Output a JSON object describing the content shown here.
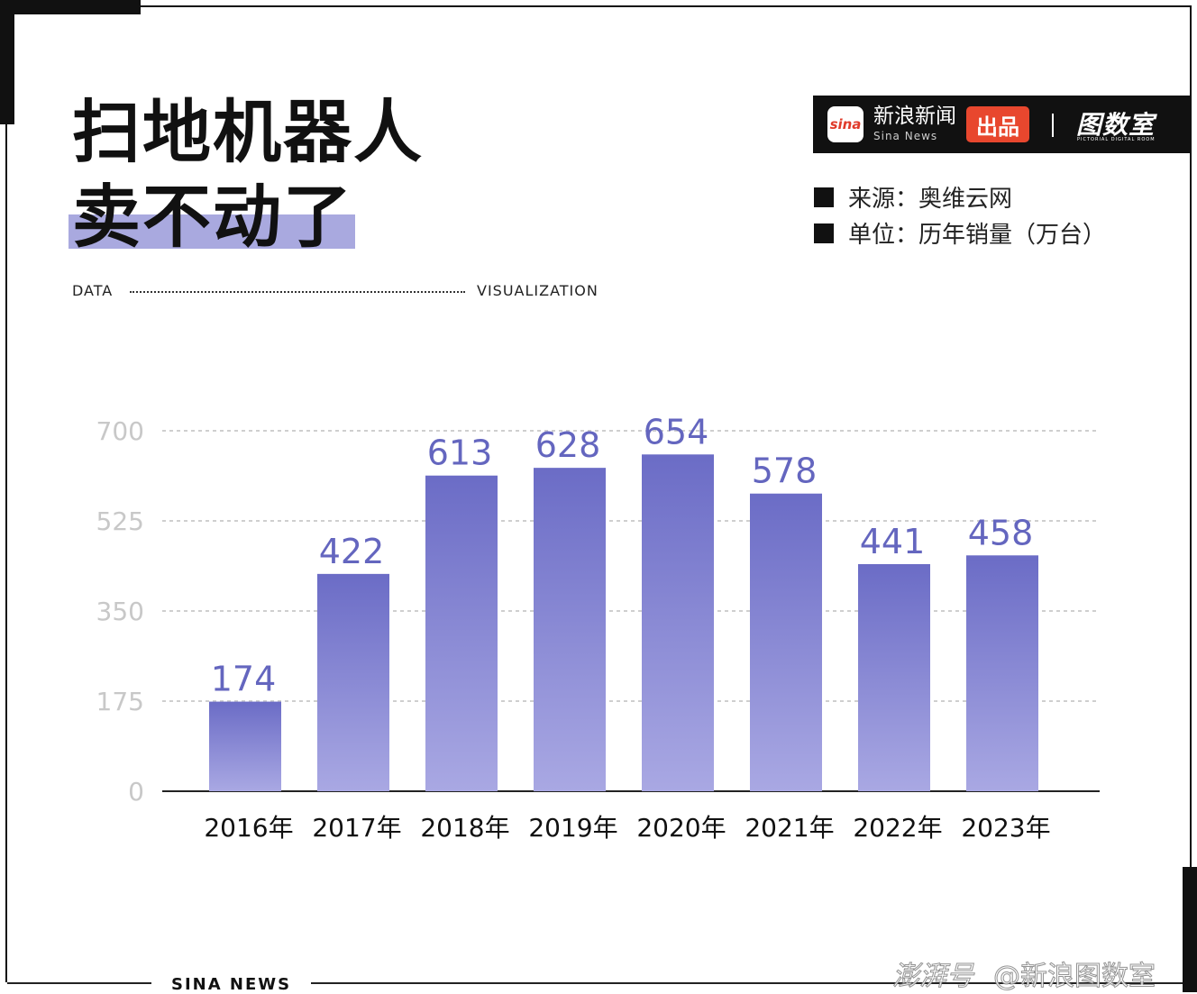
{
  "title": {
    "line1": "扫地机器人",
    "line2": "卖不动了"
  },
  "tagline": {
    "left": "DATA",
    "right": "VISUALIZATION"
  },
  "brand": {
    "sina_logo": "sina",
    "name": "新浪新闻",
    "sub": "Sina News",
    "badge": "出品",
    "logo2": "图数室",
    "logo2_sub": "PICTORIAL DIGITAL ROOM"
  },
  "meta": {
    "source": "来源：奥维云网",
    "unit": "单位：历年销量（万台）"
  },
  "footer": {
    "text": "SINA NEWS"
  },
  "watermark": {
    "left": "澎湃号",
    "right": "@新浪图数室"
  },
  "colors": {
    "bar_top": "#6b6cc6",
    "bar_bottom": "#a9a8e3",
    "label": "#6466bf",
    "grid": "#cfcfcf",
    "axis_tick": "#c8c8c8"
  },
  "chart_data": {
    "type": "bar",
    "categories": [
      "2016年",
      "2017年",
      "2018年",
      "2019年",
      "2020年",
      "2021年",
      "2022年",
      "2023年"
    ],
    "values": [
      174,
      422,
      613,
      628,
      654,
      578,
      441,
      458
    ],
    "yticks": [
      0,
      175,
      350,
      525,
      700
    ],
    "ylim": [
      0,
      700
    ],
    "grid": true,
    "data_labels": true
  }
}
